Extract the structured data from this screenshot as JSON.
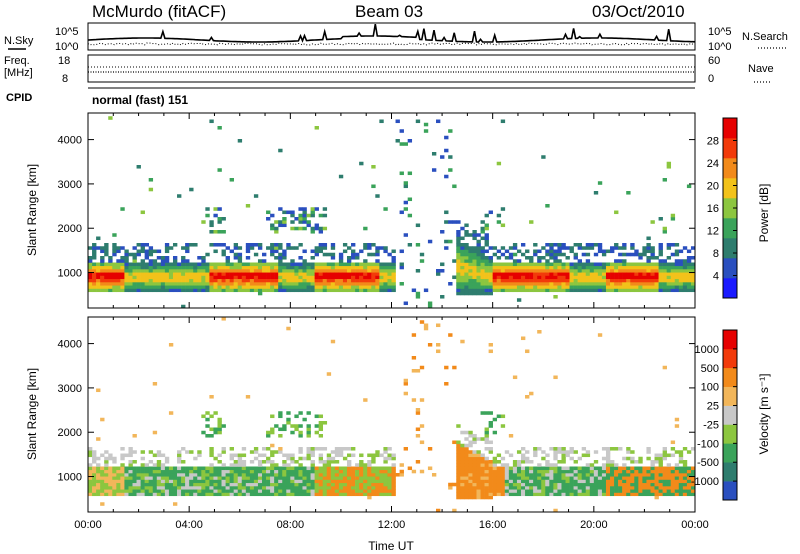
{
  "header": {
    "station": "McMurdo (fitACF)",
    "beam": "Beam 03",
    "date": "03/Oct/2010"
  },
  "side_labels": {
    "nsky": "N.Sky",
    "freq": "Freq.",
    "freq_unit": "[MHz]",
    "cpid": "CPID",
    "nsearch": "N.Search",
    "nave": "Nave"
  },
  "cpid_text": "normal (fast) 151",
  "colors": {
    "power": [
      "#1a1aff",
      "#2a4fbf",
      "#2e7d6e",
      "#3aa35a",
      "#8cc63f",
      "#f2c21a",
      "#f28a1a",
      "#f23a0a",
      "#e60000"
    ],
    "velocity": [
      "#e60000",
      "#f23a0a",
      "#f28a1a",
      "#f2b65a",
      "#c8c8c8",
      "#8cc63f",
      "#3aa35a",
      "#2e7d6e",
      "#2a4fbf"
    ]
  },
  "chart_data": [
    {
      "type": "line",
      "panel": "noise",
      "left_ticks": [
        "10^5",
        "10^0"
      ],
      "right_ticks": [
        "10^5",
        "10^0"
      ],
      "series": [
        {
          "name": "N.Sky"
        },
        {
          "name": "N.Search"
        }
      ]
    },
    {
      "type": "scatter",
      "panel": "frequency",
      "left_ticks": [
        "18",
        "8"
      ],
      "right_ticks": [
        "60",
        "0"
      ],
      "series": [
        {
          "name": "Freq."
        },
        {
          "name": "Nave"
        }
      ]
    },
    {
      "type": "heatmap",
      "panel": "power",
      "ylabel": "Slant Range [km]",
      "y_ticks": [
        1000,
        2000,
        3000,
        4000
      ],
      "ylim": [
        200,
        4600
      ],
      "xlim": [
        0,
        24
      ],
      "colorbar": {
        "label": "Power [dB]",
        "ticks": [
          4,
          8,
          12,
          16,
          20,
          24,
          28
        ],
        "range": [
          0,
          32
        ]
      }
    },
    {
      "type": "heatmap",
      "panel": "velocity",
      "ylabel": "Slant Range [km]",
      "xlabel": "Time UT",
      "x_ticks": [
        "00:00",
        "04:00",
        "08:00",
        "12:00",
        "16:00",
        "20:00",
        "00:00"
      ],
      "y_ticks": [
        1000,
        2000,
        3000,
        4000
      ],
      "ylim": [
        200,
        4600
      ],
      "xlim": [
        0,
        24
      ],
      "colorbar": {
        "label": "Velocity [m s⁻¹]",
        "ticks": [
          "1000",
          "500",
          "100",
          "25",
          "-25",
          "-100",
          "-500",
          "-1000"
        ]
      }
    }
  ]
}
